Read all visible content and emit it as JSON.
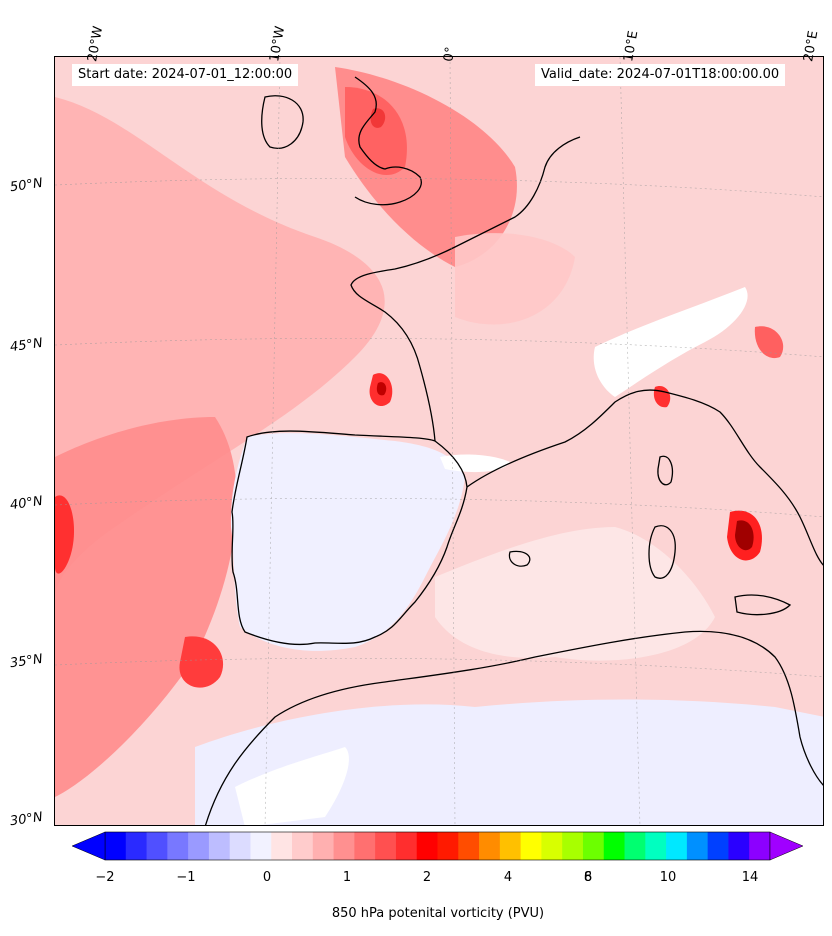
{
  "header": {
    "start_date": "Start date: 2024-07-01_12:00:00",
    "valid_date": "Valid_date: 2024-07-01T18:00:00.00"
  },
  "longitude_labels": [
    "20°W",
    "10°W",
    "0°",
    "10°E",
    "20°E"
  ],
  "latitude_labels": [
    "50°N",
    "45°N",
    "40°N",
    "35°N",
    "30°N"
  ],
  "colorbar": {
    "label": "850 hPa potenital vorticity (PVU)",
    "tick_labels": [
      "−2",
      "−1",
      "0",
      "1",
      "2",
      "4",
      "6",
      "8",
      "10",
      "14"
    ],
    "colors": [
      "#0000ff",
      "#2a2aff",
      "#5050ff",
      "#7878ff",
      "#9a9aff",
      "#bdbdff",
      "#dcdcff",
      "#f2f2ff",
      "#ffe4e4",
      "#ffcccc",
      "#ffb0b0",
      "#ff9090",
      "#ff7070",
      "#ff5050",
      "#ff2e2e",
      "#ff0000",
      "#ff1a00",
      "#ff4d00",
      "#ff8c00",
      "#ffc000",
      "#ffff00",
      "#d8ff00",
      "#a8ff00",
      "#6cff00",
      "#00ff00",
      "#00ff70",
      "#00ffc0",
      "#00e8ff",
      "#0090ff",
      "#0040ff",
      "#2a00ff",
      "#8c00ff"
    ],
    "over_color": "#a000ff",
    "under_color": "#0000ff"
  },
  "colors": {
    "background_field": "#fde0e0",
    "ocean_low_pv": "#f0f0ff",
    "coastline": "#000000"
  }
}
